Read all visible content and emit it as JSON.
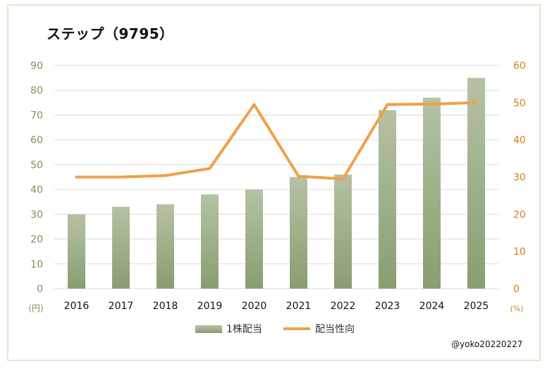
{
  "title": "ステップ（9795）",
  "credit": "@yoko20220227",
  "colors": {
    "bar_top": "#b5c2a4",
    "bar_bottom": "#8a9d71",
    "line": "#f0a04b",
    "left_axis_text": "#7f8f5c",
    "right_axis_text": "#d67f14",
    "grid": "#dcdcdc",
    "category_text": "#111111"
  },
  "chart_data": {
    "type": "bar",
    "title": "ステップ（9795）",
    "categories": [
      "2016",
      "2017",
      "2018",
      "2019",
      "2020",
      "2021",
      "2022",
      "2023",
      "2024",
      "2025"
    ],
    "series": [
      {
        "name": "1株配当",
        "type": "bar",
        "axis": "left",
        "values": [
          30,
          33,
          34,
          38,
          40,
          45,
          46,
          72,
          77,
          85
        ]
      },
      {
        "name": "配当性向",
        "type": "line",
        "axis": "right",
        "values": [
          30,
          30,
          30.4,
          32.3,
          49.5,
          30.2,
          29.5,
          49.5,
          49.6,
          50
        ]
      }
    ],
    "y_left": {
      "min": 0,
      "max": 90,
      "step": 10,
      "unit": "(円)",
      "ticks": [
        "0",
        "10",
        "20",
        "30",
        "40",
        "50",
        "60",
        "70",
        "80",
        "90"
      ]
    },
    "y_right": {
      "min": 0,
      "max": 60,
      "step": 10,
      "unit": "(%)",
      "ticks": [
        "0",
        "10",
        "20",
        "30",
        "40",
        "50",
        "60"
      ]
    },
    "grid": true,
    "legend_position": "bottom"
  }
}
